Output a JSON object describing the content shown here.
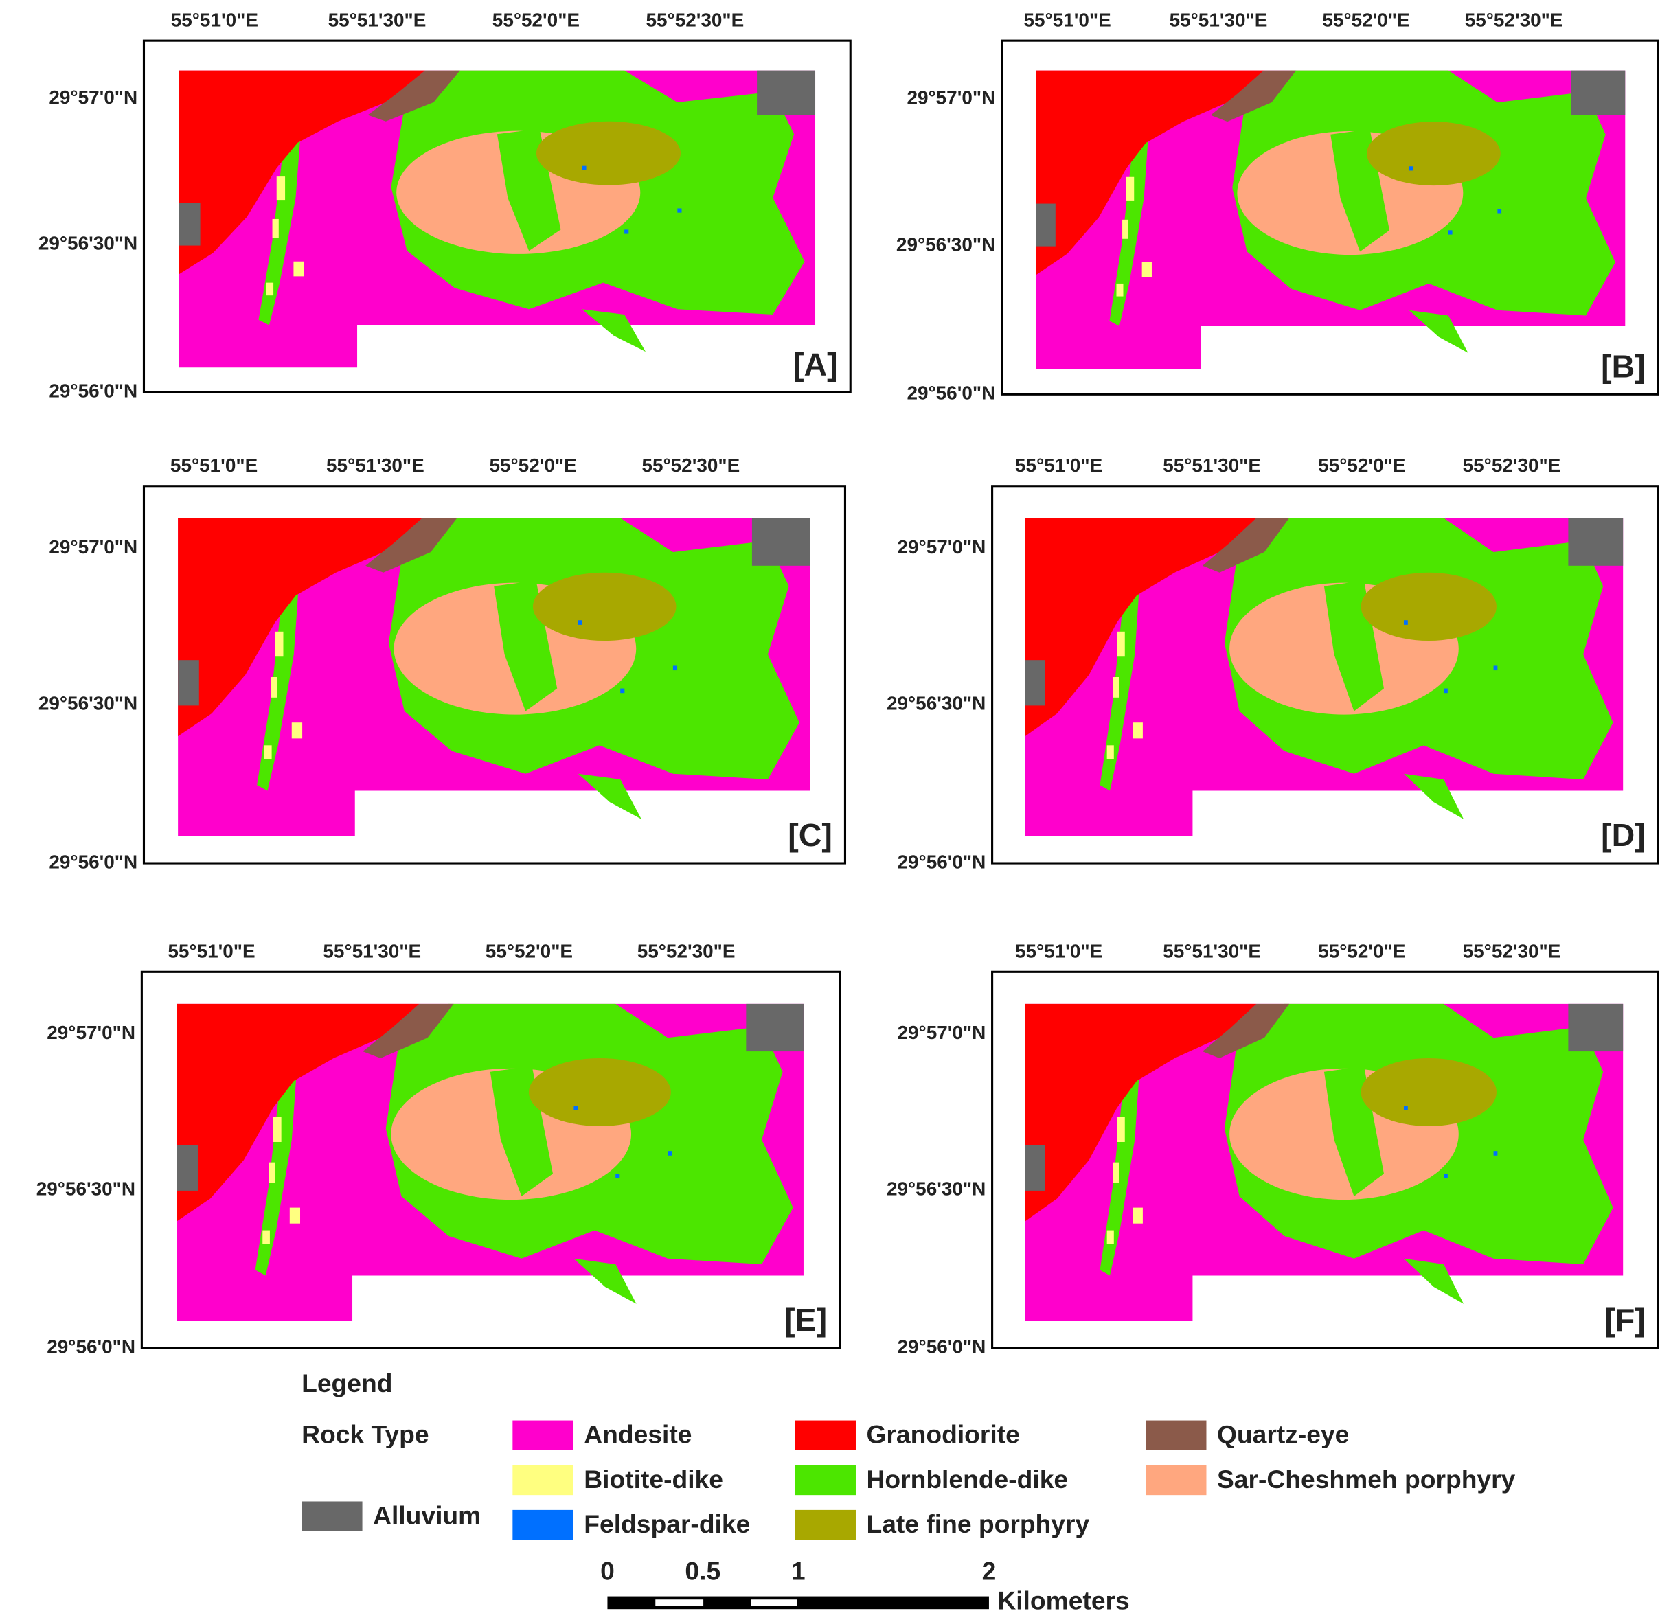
{
  "lon_labels": [
    "55°51'0\"E",
    "55°51'30\"E",
    "55°52'0\"E",
    "55°52'30\"E"
  ],
  "lat_labels": [
    "29°57'0\"N",
    "29°56'30\"N",
    "29°56'0\"N"
  ],
  "panels": [
    {
      "label": "[A]"
    },
    {
      "label": "[B]"
    },
    {
      "label": "[C]"
    },
    {
      "label": "[D]"
    },
    {
      "label": "[E]"
    },
    {
      "label": "[F]"
    }
  ],
  "legend": {
    "title": "Legend",
    "group": "Rock Type",
    "items": [
      {
        "name": "Andesite",
        "color": "#ff00cc"
      },
      {
        "name": "Biotite-dike",
        "color": "#ffff80"
      },
      {
        "name": "Feldspar-dike",
        "color": "#0070ff"
      },
      {
        "name": "Granodiorite",
        "color": "#ff0000"
      },
      {
        "name": "Hornblende-dike",
        "color": "#4ce600"
      },
      {
        "name": "Late fine porphyry",
        "color": "#a8a800"
      },
      {
        "name": "Quartz-eye",
        "color": "#8b5a4a"
      },
      {
        "name": "Sar-Cheshmeh porphyry",
        "color": "#ffa77f"
      },
      {
        "name": "Alluvium",
        "color": "#686868"
      }
    ]
  },
  "scale_bar": {
    "ticks": [
      0,
      0.5,
      1,
      2
    ],
    "unit": "Kilometers"
  }
}
